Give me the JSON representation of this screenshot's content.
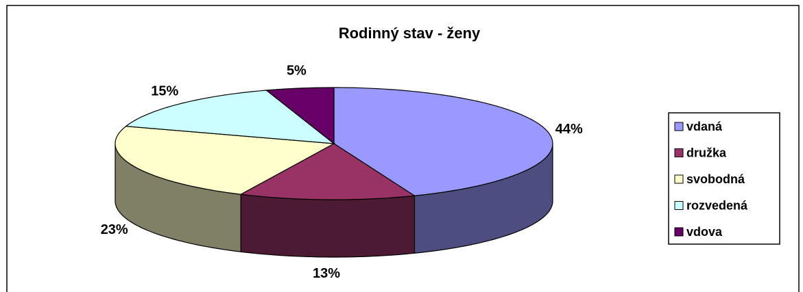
{
  "chart_data": {
    "type": "pie",
    "title": "Rodinný stav - ženy",
    "categories": [
      "vdaná",
      "družka",
      "svobodná",
      "rozvedená",
      "vdova"
    ],
    "values": [
      44,
      13,
      23,
      15,
      5
    ],
    "value_labels": [
      "44%",
      "13%",
      "23%",
      "15%",
      "5%"
    ],
    "colors": [
      "#9999ff",
      "#993366",
      "#ffffcc",
      "#ccffff",
      "#660066"
    ],
    "legend": "right"
  }
}
